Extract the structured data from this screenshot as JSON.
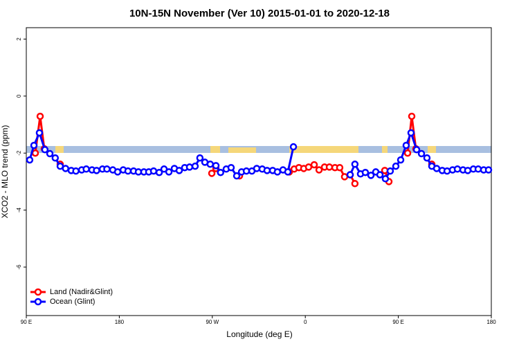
{
  "chart_data": {
    "type": "line",
    "title": "10N-15N November (Ver 10)   2015-01-01 to 2020-12-18",
    "x_label": "Longitude (deg E)",
    "y_label": "XCO2 - MLO trend (ppm)",
    "xlim": [
      90,
      540
    ],
    "xticks": [
      {
        "value": 90,
        "label": "90 E"
      },
      180,
      {
        "value": 270,
        "label": "90 W"
      },
      {
        "value": 360,
        "label": "0"
      },
      {
        "value": 450,
        "label": "90 E"
      },
      {
        "value": 540,
        "label": "180"
      }
    ],
    "ylim": [
      -7.7,
      2.4
    ],
    "yticks": [
      2,
      0,
      -2,
      -4,
      -6
    ],
    "legend": "bottom-left",
    "series": [
      {
        "name": "Land (Nadir&Glint)",
        "color": "#ff0000",
        "x": [
          98.7,
          103.4,
          107.4,
          null,
          122.8,
          null,
          269.5,
          273.5,
          null,
          296.3,
          null,
          344.5,
          349.2,
          353.8,
          358.5,
          363.2,
          368.6,
          373.3,
          378.6,
          383.3,
          388.7,
          393.3,
          398,
          403.4,
          408,
          null,
          436.9,
          440.9,
          null,
          459,
          463,
          467,
          null,
          482.4
        ],
        "values": [
          -2.0,
          -0.71,
          -1.85,
          null,
          -2.39,
          null,
          -2.71,
          -2.54,
          null,
          -2.8,
          null,
          -2.66,
          -2.56,
          -2.51,
          -2.54,
          -2.49,
          -2.41,
          -2.59,
          -2.49,
          -2.49,
          -2.51,
          -2.51,
          -2.83,
          -2.76,
          -3.07,
          null,
          -2.61,
          -3.0,
          null,
          -2.0,
          -0.71,
          -1.85,
          null,
          -2.39
        ]
      },
      {
        "name": "Ocean (Glint)",
        "color": "#0000ff",
        "x": [
          93.3,
          97.4,
          102.7,
          108,
          112.8,
          118,
          122.8,
          128,
          133.5,
          138,
          143.6,
          148,
          153.6,
          158,
          163.7,
          168,
          173.7,
          178.4,
          183.8,
          188.4,
          193.8,
          198.5,
          203.8,
          208.5,
          213.2,
          218.6,
          223.3,
          228,
          233.3,
          238,
          243.3,
          248,
          253.4,
          258,
          262.8,
          268,
          273.5,
          278,
          283.5,
          288.2,
          293.6,
          298.3,
          303,
          308.3,
          313,
          318.3,
          323,
          328.4,
          333,
          338.4,
          343.1,
          348.5,
          null,
          403.4,
          408,
          413.4,
          418.1,
          423.5,
          428.2,
          432.2,
          437.5,
          442.2,
          447.6,
          452.3,
          457.6,
          462.3,
          467.7,
          472.4,
          477.7,
          482.4,
          487.1,
          492.5,
          497.2,
          502.5,
          507.2,
          512.6,
          517.2,
          522.6,
          527.3,
          532.6,
          537.3
        ],
        "values": [
          -2.24,
          -1.73,
          -1.29,
          -1.88,
          -2.02,
          -2.17,
          -2.46,
          -2.54,
          -2.61,
          -2.63,
          -2.59,
          -2.56,
          -2.59,
          -2.61,
          -2.56,
          -2.56,
          -2.59,
          -2.66,
          -2.59,
          -2.63,
          -2.63,
          -2.66,
          -2.66,
          -2.66,
          -2.63,
          -2.68,
          -2.56,
          -2.66,
          -2.54,
          -2.61,
          -2.51,
          -2.49,
          -2.46,
          -2.17,
          -2.32,
          -2.39,
          -2.44,
          -2.68,
          -2.56,
          -2.51,
          -2.8,
          -2.66,
          -2.63,
          -2.63,
          -2.54,
          -2.56,
          -2.61,
          -2.61,
          -2.66,
          -2.59,
          -2.66,
          -1.78,
          null,
          -2.76,
          -2.39,
          -2.73,
          -2.68,
          -2.78,
          -2.66,
          -2.76,
          -2.9,
          -2.63,
          -2.46,
          -2.24,
          -1.73,
          -1.29,
          -1.88,
          -2.02,
          -2.17,
          -2.46,
          -2.54,
          -2.61,
          -2.63,
          -2.59,
          -2.56,
          -2.59,
          -2.61,
          -2.56,
          -2.56,
          -2.59,
          -2.59
        ]
      }
    ]
  }
}
